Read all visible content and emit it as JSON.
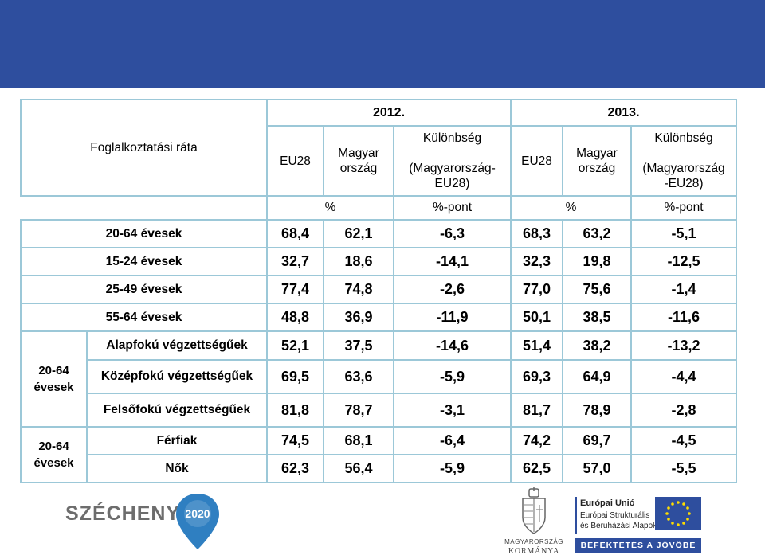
{
  "header": {
    "title_col": "Foglalkoztatási ráta",
    "year1": "2012.",
    "year2": "2013.",
    "eu28": "EU28",
    "magyar_line1": "Magyar",
    "magyar_line2": "ország",
    "kulonbseg": "Különbség",
    "diff1_line1": "(Magyarország-",
    "diff1_line2": "EU28)",
    "diff2_line1": "(Magyarország",
    "diff2_line2": "-EU28)",
    "unit_pct": "%",
    "unit_pctpont": "%-pont"
  },
  "group_labels": {
    "edu_line1": "20-64",
    "edu_line2": "évesek",
    "sex_line1": "20-64",
    "sex_line2": "évesek"
  },
  "rows": [
    {
      "label": "20-64 évesek",
      "v": [
        "68,4",
        "62,1",
        "-6,3",
        "68,3",
        "63,2",
        "-5,1"
      ]
    },
    {
      "label": "15-24 évesek",
      "v": [
        "32,7",
        "18,6",
        "-14,1",
        "32,3",
        "19,8",
        "-12,5"
      ]
    },
    {
      "label": "25-49 évesek",
      "v": [
        "77,4",
        "74,8",
        "-2,6",
        "77,0",
        "75,6",
        "-1,4"
      ]
    },
    {
      "label": "55-64 évesek",
      "v": [
        "48,8",
        "36,9",
        "-11,9",
        "50,1",
        "38,5",
        "-11,6"
      ]
    },
    {
      "label": "Alapfokú végzettségűek",
      "v": [
        "52,1",
        "37,5",
        "-14,6",
        "51,4",
        "38,2",
        "-13,2"
      ]
    },
    {
      "label": "Középfokú végzettségűek",
      "v": [
        "69,5",
        "63,6",
        "-5,9",
        "69,3",
        "64,9",
        "-4,4"
      ]
    },
    {
      "label": "Felsőfokú végzettségűek",
      "v": [
        "81,8",
        "78,7",
        "-3,1",
        "81,7",
        "78,9",
        "-2,8"
      ]
    },
    {
      "label": "Férfiak",
      "v": [
        "74,5",
        "68,1",
        "-6,4",
        "74,2",
        "69,7",
        "-4,5"
      ]
    },
    {
      "label": "Nők",
      "v": [
        "62,3",
        "56,4",
        "-5,9",
        "62,5",
        "57,0",
        "-5,5"
      ]
    }
  ],
  "logos": {
    "szechenyi": "SZÉCHENYI",
    "szechenyi_year": "2020",
    "gov_line1": "MAGYARORSZÁG",
    "gov_line2": "KORMÁNYA",
    "eu_line1": "Európai Unió",
    "eu_line2": "Európai Strukturális",
    "eu_line3": "és Beruházási Alapok",
    "eu_slogan": "BEFEKTETÉS A JÖVŐBE"
  },
  "colors": {
    "topbar": "#2e4e9e",
    "border": "#9cc8d8",
    "negative": "#a33a2a",
    "eu_blue": "#2e4e9e",
    "eu_star": "#ffdd00"
  }
}
